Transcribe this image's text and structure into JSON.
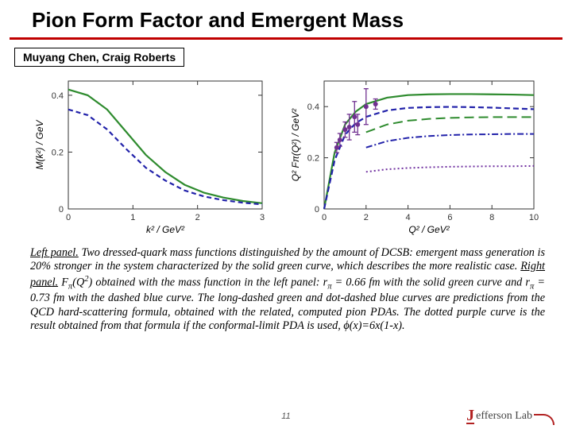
{
  "title": "Pion Form Factor and Emergent Mass",
  "authors": "Muyang Chen, Craig Roberts",
  "page_number": "11",
  "logo": {
    "initial": "J",
    "rest": "efferson Lab"
  },
  "caption": {
    "part1_label": "Left panel.",
    "part1_text": " Two dressed-quark mass functions distinguished by the amount of DCSB: emergent mass generation is 20% stronger in the system characterized by the solid green curve, which describes the more realistic case. ",
    "part2_label": "Right panel.",
    "part2_text_a": " F",
    "part2_text_b": "(Q",
    "part2_text_c": ") obtained with the mass function in the left panel: r",
    "part2_text_d": " = 0.66 fm with the solid green curve and r",
    "part2_text_e": " = 0.73 fm with the dashed blue curve. The long-dashed green and dot-dashed blue curves are predictions from the QCD hard-scattering formula, obtained with the related, computed pion PDAs. The dotted purple curve is the result obtained from that formula if the conformal-limit PDA is used, ϕ(x)=6x(1-x).",
    "pi": "π",
    "sq": "2"
  },
  "left_chart": {
    "type": "line",
    "xlabel": "k² / GeV²",
    "ylabel": "M(k²) / GeV",
    "xlim": [
      0,
      3
    ],
    "ylim": [
      0,
      0.45
    ],
    "xticks": [
      0,
      1,
      2,
      3
    ],
    "yticks": [
      0,
      0.2,
      0.4
    ],
    "background_color": "#ffffff",
    "axis_color": "#333333",
    "tick_fontsize": 11,
    "label_fontsize": 12,
    "series": [
      {
        "name": "solid-green",
        "color": "#2e8b2e",
        "dash": "none",
        "width": 2.2,
        "x": [
          0,
          0.3,
          0.6,
          0.9,
          1.2,
          1.5,
          1.8,
          2.1,
          2.4,
          2.7,
          3.0
        ],
        "y": [
          0.42,
          0.4,
          0.35,
          0.27,
          0.19,
          0.13,
          0.085,
          0.057,
          0.04,
          0.028,
          0.02
        ]
      },
      {
        "name": "dashed-blue",
        "color": "#2222aa",
        "dash": "6,4",
        "width": 2.2,
        "x": [
          0,
          0.3,
          0.6,
          0.9,
          1.2,
          1.5,
          1.8,
          2.1,
          2.4,
          2.7,
          3.0
        ],
        "y": [
          0.35,
          0.33,
          0.28,
          0.21,
          0.145,
          0.1,
          0.065,
          0.044,
          0.031,
          0.022,
          0.016
        ]
      }
    ]
  },
  "right_chart": {
    "type": "line-with-errorbars",
    "xlabel": "Q² / GeV²",
    "ylabel": "Q² Fπ(Q²) / GeV²",
    "xlim": [
      0,
      10
    ],
    "ylim": [
      0,
      0.5
    ],
    "xticks": [
      0,
      2,
      4,
      6,
      8,
      10
    ],
    "yticks": [
      0,
      0.2,
      0.4
    ],
    "background_color": "#ffffff",
    "axis_color": "#333333",
    "tick_fontsize": 11,
    "label_fontsize": 12,
    "series": [
      {
        "name": "solid-green",
        "color": "#2e8b2e",
        "dash": "none",
        "width": 2.2,
        "x": [
          0,
          0.5,
          1,
          1.5,
          2,
          3,
          4,
          5,
          6,
          7,
          8,
          9,
          10
        ],
        "y": [
          0,
          0.22,
          0.33,
          0.38,
          0.41,
          0.435,
          0.445,
          0.448,
          0.449,
          0.449,
          0.448,
          0.447,
          0.445
        ]
      },
      {
        "name": "dashed-blue",
        "color": "#2222aa",
        "dash": "7,4",
        "width": 2.2,
        "x": [
          0,
          0.5,
          1,
          1.5,
          2,
          3,
          4,
          5,
          6,
          7,
          8,
          9,
          10
        ],
        "y": [
          0,
          0.19,
          0.29,
          0.335,
          0.36,
          0.385,
          0.395,
          0.398,
          0.399,
          0.398,
          0.396,
          0.393,
          0.39
        ]
      },
      {
        "name": "long-dashed-green",
        "color": "#2e8b2e",
        "dash": "12,6",
        "width": 2.0,
        "x": [
          2,
          3,
          4,
          5,
          6,
          7,
          8,
          9,
          10
        ],
        "y": [
          0.3,
          0.33,
          0.345,
          0.352,
          0.356,
          0.358,
          0.359,
          0.359,
          0.359
        ]
      },
      {
        "name": "dot-dashed-blue",
        "color": "#2222aa",
        "dash": "8,3,2,3",
        "width": 2.0,
        "x": [
          2,
          3,
          4,
          5,
          6,
          7,
          8,
          9,
          10
        ],
        "y": [
          0.24,
          0.265,
          0.278,
          0.285,
          0.289,
          0.291,
          0.292,
          0.293,
          0.293
        ]
      },
      {
        "name": "dotted-purple",
        "color": "#7030a0",
        "dash": "2,3",
        "width": 2.0,
        "x": [
          2,
          3,
          4,
          5,
          6,
          7,
          8,
          9,
          10
        ],
        "y": [
          0.145,
          0.155,
          0.16,
          0.163,
          0.165,
          0.166,
          0.167,
          0.167,
          0.168
        ]
      }
    ],
    "data_points": {
      "marker": "circle",
      "color": "#703090",
      "size": 3,
      "x": [
        0.6,
        0.75,
        1.0,
        1.2,
        1.45,
        1.6,
        2.0,
        2.45
      ],
      "y": [
        0.24,
        0.27,
        0.31,
        0.32,
        0.36,
        0.33,
        0.4,
        0.41
      ],
      "yerr": [
        0.02,
        0.025,
        0.03,
        0.05,
        0.06,
        0.04,
        0.07,
        0.02
      ]
    }
  }
}
